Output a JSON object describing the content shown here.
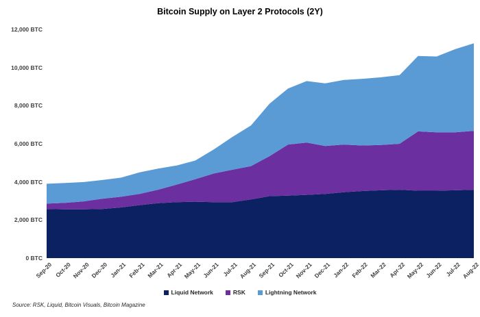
{
  "title": "Bitcoin Supply on Layer 2 Protocols (2Y)",
  "source_note": "Source: RSK, Liquid, Bitcoin Visuals, Bitcoin Magazine",
  "y_axis": {
    "tick_labels": [
      "0 BTC",
      "2,000 BTC",
      "4,000 BTC",
      "6,000 BTC",
      "8,000 BTC",
      "10,000 BTC",
      "12,000 BTC"
    ],
    "tick_values": [
      0,
      2000,
      4000,
      6000,
      8000,
      10000,
      12000
    ]
  },
  "chart_data": {
    "type": "area",
    "stacked": true,
    "title": "Bitcoin Supply on Layer 2 Protocols (2Y)",
    "xlabel": "",
    "ylabel": "",
    "ylim": [
      0,
      12000
    ],
    "ytick_step": 2000,
    "ytick_suffix": " BTC",
    "grid": false,
    "legend_position": "bottom",
    "categories": [
      "Sep-20",
      "Oct-20",
      "Nov-20",
      "Dec-20",
      "Jan-21",
      "Feb-21",
      "Mar-21",
      "Apr-21",
      "May-21",
      "Jun-21",
      "Jul-21",
      "Aug-21",
      "Sep-21",
      "Oct-21",
      "Nov-21",
      "Dec-21",
      "Jan-22",
      "Feb-22",
      "Mar-22",
      "Apr-22",
      "May-22",
      "Jun-22",
      "Jul-22",
      "Aug-22"
    ],
    "series": [
      {
        "name": "Liquid Network",
        "color": "#0b2161",
        "values": [
          2580,
          2560,
          2560,
          2580,
          2660,
          2780,
          2880,
          2940,
          2960,
          2940,
          2940,
          3080,
          3250,
          3280,
          3320,
          3370,
          3460,
          3520,
          3560,
          3590,
          3540,
          3540,
          3560,
          3590
        ]
      },
      {
        "name": "RSK",
        "color": "#6b2f9f",
        "values": [
          280,
          340,
          420,
          540,
          560,
          590,
          710,
          920,
          1180,
          1500,
          1700,
          1750,
          2100,
          2680,
          2740,
          2510,
          2500,
          2390,
          2380,
          2410,
          3110,
          3060,
          3040,
          3090
        ]
      },
      {
        "name": "Lightning Network",
        "color": "#5b9bd5",
        "values": [
          1040,
          1040,
          1010,
          980,
          1000,
          1130,
          1110,
          1000,
          980,
          1260,
          1720,
          2130,
          2750,
          2940,
          3230,
          3290,
          3390,
          3500,
          3550,
          3600,
          3960,
          3980,
          4370,
          4590
        ]
      }
    ]
  }
}
